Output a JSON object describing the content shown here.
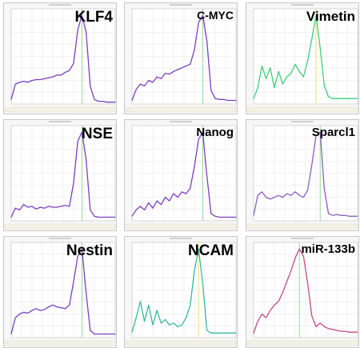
{
  "chart_data": [
    {
      "type": "line",
      "title": "KLF4",
      "color": "#7b3fbf",
      "peak_color": "#9b7fcf",
      "peak_line_color": "#89d38f",
      "x": [
        0,
        4,
        8,
        12,
        16,
        20,
        24,
        28,
        32,
        36,
        40,
        44,
        48,
        52,
        56,
        60,
        64,
        68,
        72,
        76,
        80,
        84,
        88,
        92,
        96,
        100
      ],
      "values": [
        0.05,
        0.22,
        0.24,
        0.25,
        0.24,
        0.26,
        0.27,
        0.27,
        0.28,
        0.29,
        0.3,
        0.32,
        0.32,
        0.35,
        0.37,
        0.45,
        0.82,
        0.98,
        0.8,
        0.2,
        0.05,
        0.03,
        0.03,
        0.02,
        0.02,
        0.02
      ]
    },
    {
      "type": "line",
      "title": "C-MYC",
      "color": "#7b3fbf",
      "peak_color": "#9b7fcf",
      "peak_line_color": "#89d38f",
      "x": [
        0,
        4,
        8,
        12,
        16,
        20,
        24,
        28,
        32,
        36,
        40,
        44,
        48,
        52,
        56,
        60,
        64,
        68,
        72,
        76,
        80,
        84,
        88,
        92,
        96,
        100
      ],
      "values": [
        0.04,
        0.16,
        0.22,
        0.2,
        0.26,
        0.24,
        0.3,
        0.28,
        0.34,
        0.33,
        0.36,
        0.38,
        0.4,
        0.42,
        0.44,
        0.6,
        0.9,
        0.98,
        0.7,
        0.15,
        0.06,
        0.05,
        0.05,
        0.04,
        0.04,
        0.04
      ]
    },
    {
      "type": "line",
      "title": "Vimetin",
      "color": "#3ccf7a",
      "peak_color": "#3ccf7a",
      "peak_line_color": "#f0d86a",
      "x": [
        0,
        4,
        8,
        12,
        16,
        20,
        24,
        28,
        32,
        36,
        40,
        44,
        48,
        52,
        56,
        60,
        64,
        68,
        72,
        76,
        80,
        84,
        88,
        92,
        96,
        100
      ],
      "values": [
        0.06,
        0.18,
        0.42,
        0.28,
        0.4,
        0.18,
        0.36,
        0.22,
        0.3,
        0.34,
        0.44,
        0.36,
        0.3,
        0.48,
        0.72,
        0.98,
        0.62,
        0.2,
        0.08,
        0.06,
        0.06,
        0.06,
        0.06,
        0.06,
        0.06,
        0.06
      ]
    },
    {
      "type": "line",
      "title": "NSE",
      "color": "#7b3fbf",
      "peak_color": "#9b7fcf",
      "peak_line_color": "#89d38f",
      "x": [
        0,
        4,
        8,
        12,
        16,
        20,
        24,
        28,
        32,
        36,
        40,
        44,
        48,
        52,
        56,
        60,
        64,
        68,
        72,
        76,
        80,
        84,
        88,
        92,
        96,
        100
      ],
      "values": [
        0.04,
        0.14,
        0.12,
        0.18,
        0.15,
        0.16,
        0.13,
        0.15,
        0.14,
        0.16,
        0.15,
        0.15,
        0.16,
        0.17,
        0.16,
        0.42,
        0.88,
        0.98,
        0.68,
        0.12,
        0.05,
        0.04,
        0.04,
        0.04,
        0.04,
        0.04
      ]
    },
    {
      "type": "line",
      "title": "Nanog",
      "color": "#7b3fbf",
      "peak_color": "#9b7fcf",
      "peak_line_color": "#89d38f",
      "x": [
        0,
        4,
        8,
        12,
        16,
        20,
        24,
        28,
        32,
        36,
        40,
        44,
        48,
        52,
        56,
        60,
        64,
        68,
        72,
        76,
        80,
        84,
        88,
        92,
        96,
        100
      ],
      "values": [
        0.05,
        0.12,
        0.16,
        0.12,
        0.2,
        0.14,
        0.22,
        0.18,
        0.26,
        0.22,
        0.3,
        0.26,
        0.32,
        0.3,
        0.36,
        0.6,
        0.9,
        0.98,
        0.5,
        0.08,
        0.05,
        0.04,
        0.04,
        0.04,
        0.04,
        0.04
      ]
    },
    {
      "type": "line",
      "title": "Sparcl1",
      "color": "#8c5fbf",
      "peak_color": "#8aa0bf",
      "peak_line_color": "#89d38f",
      "x": [
        0,
        4,
        8,
        12,
        16,
        20,
        24,
        28,
        32,
        36,
        40,
        44,
        48,
        52,
        56,
        60,
        64,
        68,
        72,
        76,
        80,
        84,
        88,
        92,
        96,
        100
      ],
      "values": [
        0.06,
        0.28,
        0.32,
        0.26,
        0.24,
        0.26,
        0.28,
        0.26,
        0.3,
        0.28,
        0.32,
        0.28,
        0.26,
        0.34,
        0.62,
        0.94,
        0.98,
        0.35,
        0.08,
        0.06,
        0.07,
        0.06,
        0.06,
        0.05,
        0.05,
        0.05
      ]
    },
    {
      "type": "line",
      "title": "Nestin",
      "color": "#7b3fbf",
      "peak_color": "#7f8fbf",
      "peak_line_color": "#89d38f",
      "x": [
        0,
        4,
        8,
        12,
        16,
        20,
        24,
        28,
        32,
        36,
        40,
        44,
        48,
        52,
        56,
        60,
        64,
        68,
        72,
        76,
        80,
        84,
        88,
        92,
        96,
        100
      ],
      "values": [
        0.04,
        0.22,
        0.26,
        0.28,
        0.27,
        0.3,
        0.32,
        0.3,
        0.31,
        0.34,
        0.36,
        0.34,
        0.33,
        0.32,
        0.36,
        0.62,
        0.9,
        0.98,
        0.5,
        0.08,
        0.04,
        0.04,
        0.04,
        0.04,
        0.04,
        0.04
      ]
    },
    {
      "type": "line",
      "title": "NCAM",
      "color": "#3ab8a0",
      "peak_color": "#3ab8a0",
      "peak_line_color": "#f0d86a",
      "x": [
        0,
        4,
        8,
        12,
        16,
        20,
        24,
        28,
        32,
        36,
        40,
        44,
        48,
        52,
        56,
        60,
        64,
        68,
        72,
        76,
        80,
        84,
        88,
        92,
        96,
        100
      ],
      "values": [
        0.06,
        0.22,
        0.4,
        0.18,
        0.36,
        0.14,
        0.3,
        0.16,
        0.2,
        0.14,
        0.16,
        0.12,
        0.14,
        0.22,
        0.36,
        0.74,
        0.98,
        0.6,
        0.08,
        0.05,
        0.05,
        0.05,
        0.05,
        0.05,
        0.05,
        0.05
      ]
    },
    {
      "type": "line",
      "title": "miR-133b",
      "color": "#c04a8a",
      "peak_color": "#c04a8a",
      "peak_line_color": "#89d38f",
      "x": [
        0,
        4,
        8,
        12,
        16,
        20,
        24,
        28,
        32,
        36,
        40,
        44,
        48,
        52,
        56,
        60,
        64,
        68,
        72,
        76,
        80,
        84,
        88,
        92,
        96,
        100
      ],
      "values": [
        0.05,
        0.18,
        0.26,
        0.22,
        0.3,
        0.36,
        0.4,
        0.5,
        0.62,
        0.74,
        0.88,
        0.98,
        0.9,
        0.6,
        0.24,
        0.12,
        0.16,
        0.12,
        0.1,
        0.09,
        0.08,
        0.07,
        0.07,
        0.06,
        0.06,
        0.06
      ]
    }
  ]
}
